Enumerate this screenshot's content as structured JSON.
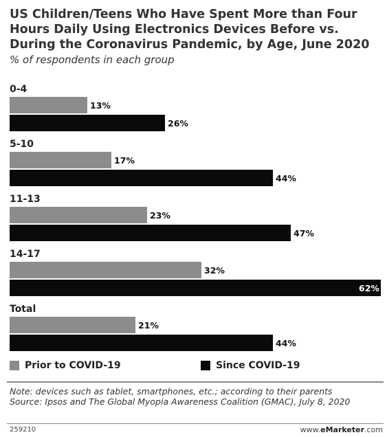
{
  "title": "US Children/Teens Who Have Spent More than Four Hours Daily Using Electronics Devices Before vs. During the Coronavirus Pandemic, by Age, June 2020",
  "subtitle": "% of respondents in each group",
  "colors": {
    "prior": "#8c8c8c",
    "since": "#0a0a0a"
  },
  "chart_data": {
    "type": "bar",
    "orientation": "horizontal",
    "categories": [
      "0-4",
      "5-10",
      "11-13",
      "14-17",
      "Total"
    ],
    "series": [
      {
        "name": "Prior to COVID-19",
        "values": [
          13,
          17,
          23,
          32,
          21
        ],
        "labels": [
          "13%",
          "17%",
          "23%",
          "32%",
          "21%"
        ]
      },
      {
        "name": "Since COVID-19",
        "values": [
          26,
          44,
          47,
          62,
          44
        ],
        "labels": [
          "26%",
          "44%",
          "47%",
          "62%",
          "44%"
        ]
      }
    ],
    "xlim": [
      0,
      62
    ],
    "legend_position": "bottom-left",
    "grid": false
  },
  "legend": [
    {
      "label": "Prior to COVID-19"
    },
    {
      "label": "Since COVID-19"
    }
  ],
  "notes": {
    "note": "Note: devices such as tablet, smartphones, etc.; according to their parents",
    "source": "Source: Ipsos and The Global Myopia Awareness Coalition (GMAC), July 8, 2020"
  },
  "footer": {
    "id": "259210",
    "brand_prefix": "www.",
    "brand_name": "eMarketer",
    "brand_suffix": ".com"
  }
}
